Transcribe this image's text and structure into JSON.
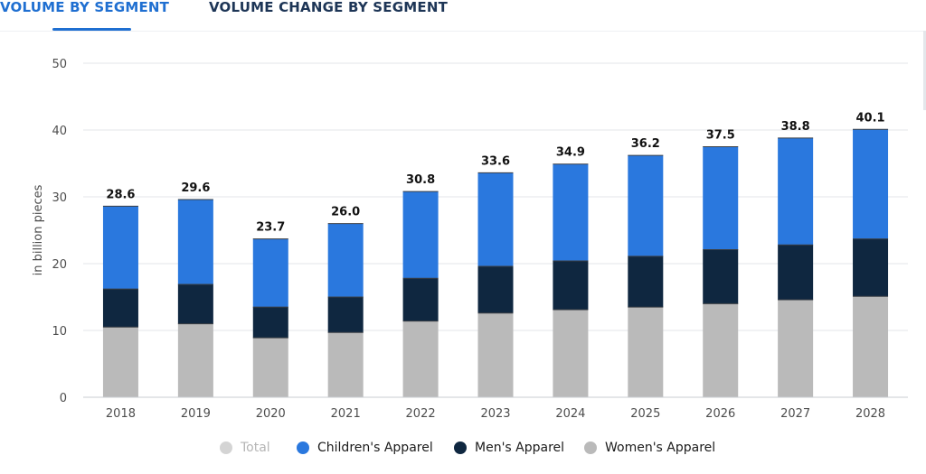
{
  "tabs": [
    {
      "label": "VOLUME BY SEGMENT",
      "active": true
    },
    {
      "label": "VOLUME CHANGE BY SEGMENT",
      "active": false
    }
  ],
  "colors": {
    "accent": "#1f6fd1",
    "childrens": "#2a78de",
    "mens": "#0f2740",
    "womens": "#bababa",
    "total_legend": "#d4d4d4",
    "grid": "#e3e6ea",
    "axis_text": "#4d4d4d",
    "label_text": "#111111"
  },
  "chart_data": {
    "type": "bar",
    "stacked": true,
    "categories": [
      "2018",
      "2019",
      "2020",
      "2021",
      "2022",
      "2023",
      "2024",
      "2025",
      "2026",
      "2027",
      "2028"
    ],
    "series": [
      {
        "name": "Women's Apparel",
        "color": "#bababa",
        "values": [
          10.5,
          11.0,
          8.9,
          9.7,
          11.4,
          12.6,
          13.1,
          13.5,
          14.0,
          14.6,
          15.1
        ]
      },
      {
        "name": "Men's Apparel",
        "color": "#0f2740",
        "values": [
          5.7,
          5.9,
          4.6,
          5.3,
          6.4,
          7.0,
          7.3,
          7.6,
          8.1,
          8.2,
          8.6
        ]
      },
      {
        "name": "Children's Apparel",
        "color": "#2a78de",
        "values": [
          12.4,
          12.7,
          10.2,
          11.0,
          13.0,
          14.0,
          14.5,
          15.1,
          15.4,
          16.0,
          16.4
        ]
      }
    ],
    "totals": [
      "28.6",
      "29.6",
      "23.7",
      "26.0",
      "30.8",
      "33.6",
      "34.9",
      "36.2",
      "37.5",
      "38.8",
      "40.1"
    ],
    "ylabel": "in billion pieces",
    "ylim": [
      0,
      50
    ],
    "yticks": [
      "0",
      "10",
      "20",
      "30",
      "40",
      "50"
    ],
    "grid": true,
    "legend_position": "bottom"
  },
  "legend": [
    {
      "key": "total",
      "label": "Total",
      "color": "#d4d4d4",
      "text_color": "#b5b5b5"
    },
    {
      "key": "childrens",
      "label": "Children's Apparel",
      "color": "#2a78de",
      "text_color": "#1b1b1b"
    },
    {
      "key": "mens",
      "label": "Men's Apparel",
      "color": "#0f2740",
      "text_color": "#1b1b1b"
    },
    {
      "key": "womens",
      "label": "Women's Apparel",
      "color": "#bababa",
      "text_color": "#1b1b1b"
    }
  ]
}
